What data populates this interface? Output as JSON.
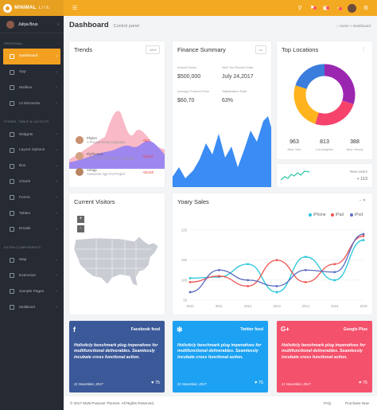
{
  "app": {
    "logo_text": "MINIMAL",
    "logo_sub": "LITE"
  },
  "topbar": {
    "menu_icon": "hamburger-icon",
    "icons": [
      "search-icon",
      "bell-icon",
      "gift-icon",
      "message-icon",
      "user-avatar",
      "gear-icon"
    ]
  },
  "user": {
    "name": "Juliya Brus"
  },
  "sidebar": {
    "section1": "PERSONAL",
    "items1": [
      {
        "label": "Dashboard"
      },
      {
        "label": "App"
      },
      {
        "label": "Mailbox"
      },
      {
        "label": "UI Elements"
      }
    ],
    "section2": "FORMS, TABLE & LAYOUTS",
    "items2": [
      {
        "label": "Widgets"
      },
      {
        "label": "Layout Options"
      },
      {
        "label": "Box"
      },
      {
        "label": "Charts"
      },
      {
        "label": "Forms"
      },
      {
        "label": "Tables"
      },
      {
        "label": "Emails"
      }
    ],
    "section3": "EXTRA COMPONENTS",
    "items3": [
      {
        "label": "Map"
      },
      {
        "label": "Extension"
      },
      {
        "label": "Sample Pages"
      },
      {
        "label": "Multilevel"
      }
    ]
  },
  "header": {
    "title": "Dashboard",
    "subtitle": "Control panel",
    "crumb_home": "Home",
    "crumb_sep": ">",
    "crumb_current": "Dashboard"
  },
  "trends": {
    "title": "Trends",
    "filter": "All",
    "rows": [
      {
        "name": "Phylon",
        "desc": "A Programming Language",
        "value": "+$17"
      },
      {
        "name": "FlyThemes",
        "desc": "A Let's Fly Fast Again Language",
        "value": "+$1341"
      },
      {
        "name": "AirApp",
        "desc": "Awesome App For Project",
        "value": "+$1340"
      }
    ]
  },
  "finance": {
    "title": "Finance Summary",
    "menu": "•••",
    "stats": [
      {
        "label": "Annual Taxes",
        "value": "$500,000"
      },
      {
        "label": "Next Tax Review Date",
        "value": "July 24,2017"
      },
      {
        "label": "Average Product Price",
        "value": "$60,70"
      },
      {
        "label": "Satisfication Rate",
        "value": "63%"
      }
    ]
  },
  "locations": {
    "title": "Top Locations",
    "menu": "⋮",
    "stats": [
      {
        "value": "963",
        "label": "New York",
        "color": "#3b7ddd"
      },
      {
        "value": "813",
        "label": "Los Angeles",
        "color": "#f4a623"
      },
      {
        "value": "388",
        "label": "New Jersey",
        "color": "#9c27b0"
      }
    ],
    "segments": [
      {
        "color": "#9b27b0",
        "value": 30
      },
      {
        "color": "#f5436b",
        "value": 25
      },
      {
        "color": "#ffb41f",
        "value": 25
      },
      {
        "color": "#3b7ddd",
        "value": 20
      }
    ]
  },
  "users": {
    "label": "New Users",
    "value": "+ 113"
  },
  "visitors": {
    "title": "Current Visitors",
    "zoom_in": "+",
    "zoom_out": "-"
  },
  "sales": {
    "title": "Yoary Sales",
    "controls": "–  ✕"
  },
  "chart_data": {
    "type": "line",
    "x": [
      "2010",
      "2011",
      "2012",
      "2013",
      "2014",
      "2015",
      "2016"
    ],
    "ylim": [
      50,
      225
    ],
    "yticks": [
      "225",
      "150",
      "100",
      "50"
    ],
    "series": [
      {
        "name": "iPhone",
        "color": "#26c6da",
        "values": [
          105,
          108,
          140,
          70,
          158,
          100,
          200
        ]
      },
      {
        "name": "iPad",
        "color": "#ef5350",
        "values": [
          95,
          110,
          85,
          150,
          95,
          140,
          210
        ]
      },
      {
        "name": "iPod",
        "color": "#5c6bc0",
        "values": [
          70,
          125,
          100,
          85,
          125,
          120,
          215
        ]
      }
    ]
  },
  "facebook": {
    "title": "Facebook feed",
    "body": "Holisticly benchmark plug imperatives for multifunctional deliverables. Seamlessly incubate cross functional action.",
    "date": "21 November, 2017",
    "likes": "75",
    "color": "#3b5998"
  },
  "twitter": {
    "title": "Twitter feed",
    "body": "Holisticly benchmark plug imperatives for multifunctional deliverables. Seamlessly incubate cross functional action.",
    "date": "21 November, 2017",
    "likes": "75",
    "color": "#1da1f2"
  },
  "google": {
    "title": "Google Plus",
    "body": "Holisticly benchmark plug imperatives for multifunctional deliverables. Seamlessly incubate cross functional action.",
    "date": "21 November, 2017",
    "likes": "75",
    "color": "#f4516c"
  },
  "footer": {
    "copy": "© 2017 Multi-Purpose Themes. All Rights Reserved.",
    "faq": "FAQ",
    "purchase": "Purchase Now"
  }
}
